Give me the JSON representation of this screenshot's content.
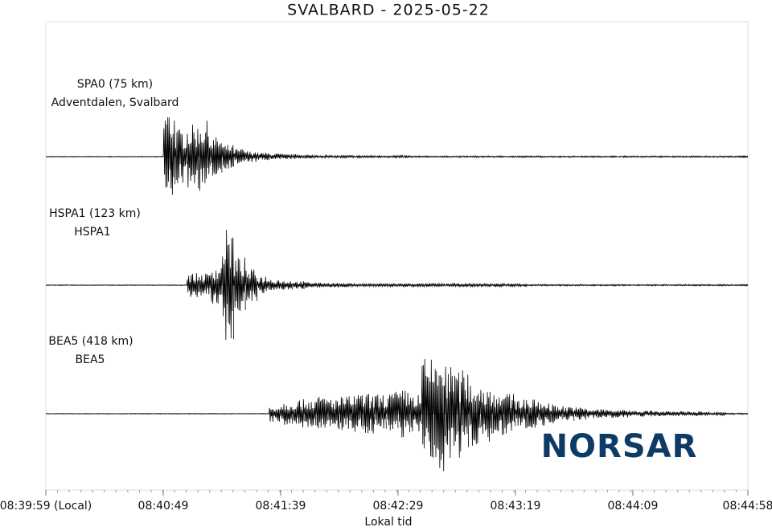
{
  "chart_data": {
    "type": "seismogram",
    "title": "SVALBARD - 2025-05-22",
    "xlabel": "Lokal tid",
    "logo": "NORSAR",
    "xlim": [
      0,
      299
    ],
    "xticks": [
      {
        "value": 0,
        "label": "08:39:59 (Local)"
      },
      {
        "value": 50,
        "label": "08:40:49"
      },
      {
        "value": 100,
        "label": "08:41:39"
      },
      {
        "value": 150,
        "label": "08:42:29"
      },
      {
        "value": 200,
        "label": "08:43:19"
      },
      {
        "value": 250,
        "label": "08:44:09"
      },
      {
        "value": 299,
        "label": "08:44:58"
      }
    ],
    "color": "#000000",
    "series": [
      {
        "name": "SPA0 (75 km)",
        "location": "Adventdalen, Svalbard",
        "values": [
          0.5,
          0.5,
          0.5,
          0.5,
          0.5,
          0.5,
          0.5,
          0.5,
          0.5,
          0.5,
          60,
          35,
          40,
          45,
          25,
          15,
          10,
          7,
          5,
          4,
          3,
          3,
          2,
          2,
          1.5,
          1.5,
          1.5,
          1.5,
          1.5,
          1.5,
          1.5,
          1,
          1,
          1,
          1,
          1,
          1,
          1,
          1,
          1,
          1,
          1,
          1,
          1,
          1,
          1,
          1,
          1,
          1,
          1,
          1,
          1,
          1,
          1,
          1,
          1,
          1,
          1,
          1,
          1
        ]
      },
      {
        "name": "HSPA1 (123 km)",
        "location": "HSPA1",
        "values": [
          0.5,
          0.5,
          0.5,
          0.5,
          0.5,
          0.5,
          0.5,
          0.5,
          0.5,
          0.5,
          0.5,
          0.5,
          15,
          15,
          25,
          70,
          35,
          20,
          12,
          8,
          6,
          5,
          4,
          3,
          3,
          2.5,
          2,
          2,
          2,
          2,
          2,
          2,
          2,
          2,
          2,
          2,
          2,
          2,
          2,
          2,
          2,
          1,
          1,
          1,
          1,
          1,
          1,
          1,
          1,
          1,
          1,
          1,
          1,
          1,
          1,
          1,
          1,
          1,
          1,
          1
        ]
      },
      {
        "name": "BEA5 (418 km)",
        "location": "BEA5",
        "values": [
          0.5,
          0.5,
          0.5,
          0.5,
          0.5,
          0.5,
          0.5,
          0.5,
          0.5,
          0.5,
          0.5,
          0.5,
          0.5,
          0.5,
          0.5,
          0.5,
          0.5,
          0.5,
          0.5,
          10,
          15,
          18,
          20,
          22,
          20,
          22,
          25,
          25,
          25,
          28,
          30,
          25,
          70,
          75,
          60,
          55,
          40,
          35,
          30,
          25,
          20,
          18,
          15,
          12,
          10,
          8,
          6,
          6,
          5,
          5,
          4,
          4,
          3,
          3,
          3,
          3,
          2,
          2,
          1,
          1
        ]
      }
    ]
  }
}
